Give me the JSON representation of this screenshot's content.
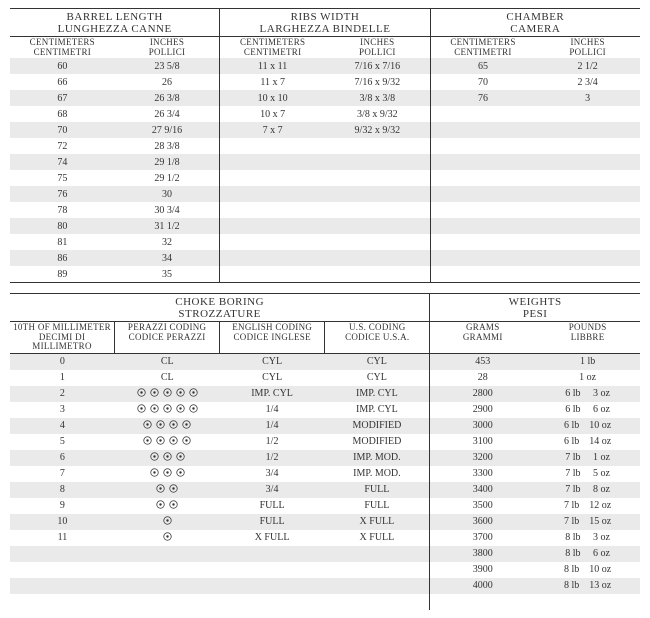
{
  "colors": {
    "stripe": "#eaeaea",
    "background": "#ffffff",
    "rule": "#333333",
    "text": "#333333"
  },
  "top": {
    "barrel": {
      "title_en": "BARREL LENGTH",
      "title_it": "LUNGHEZZA CANNE",
      "cols": {
        "cm_en": "CENTIMETERS",
        "cm_it": "CENTIMETRI",
        "in_en": "INCHES",
        "in_it": "POLLICI"
      },
      "rows": [
        {
          "cm": "60",
          "in": "23 5/8"
        },
        {
          "cm": "66",
          "in": "26"
        },
        {
          "cm": "67",
          "in": "26 3/8"
        },
        {
          "cm": "68",
          "in": "26 3/4"
        },
        {
          "cm": "70",
          "in": "27 9/16"
        },
        {
          "cm": "72",
          "in": "28 3/8"
        },
        {
          "cm": "74",
          "in": "29 1/8"
        },
        {
          "cm": "75",
          "in": "29 1/2"
        },
        {
          "cm": "76",
          "in": "30"
        },
        {
          "cm": "78",
          "in": "30 3/4"
        },
        {
          "cm": "80",
          "in": "31 1/2"
        },
        {
          "cm": "81",
          "in": "32"
        },
        {
          "cm": "86",
          "in": "34"
        },
        {
          "cm": "89",
          "in": "35"
        }
      ]
    },
    "ribs": {
      "title_en": "RIBS WIDTH",
      "title_it": "LARGHEZZA BINDELLE",
      "cols": {
        "cm_en": "CENTIMETERS",
        "cm_it": "CENTIMETRI",
        "in_en": "INCHES",
        "in_it": "POLLICI"
      },
      "rows": [
        {
          "cm": "11 x 11",
          "in": "7/16 x 7/16"
        },
        {
          "cm": "11 x 7",
          "in": "7/16 x 9/32"
        },
        {
          "cm": "10 x 10",
          "in": "3/8 x 3/8"
        },
        {
          "cm": "10 x 7",
          "in": "3/8 x 9/32"
        },
        {
          "cm": "7 x 7",
          "in": "9/32 x 9/32"
        },
        {
          "cm": "",
          "in": ""
        },
        {
          "cm": "",
          "in": ""
        },
        {
          "cm": "",
          "in": ""
        },
        {
          "cm": "",
          "in": ""
        },
        {
          "cm": "",
          "in": ""
        },
        {
          "cm": "",
          "in": ""
        },
        {
          "cm": "",
          "in": ""
        },
        {
          "cm": "",
          "in": ""
        },
        {
          "cm": "",
          "in": ""
        }
      ]
    },
    "chamber": {
      "title_en": "CHAMBER",
      "title_it": "CAMERA",
      "cols": {
        "cm_en": "CENTIMETERS",
        "cm_it": "CENTIMETRI",
        "in_en": "INCHES",
        "in_it": "POLLICI"
      },
      "rows": [
        {
          "cm": "65",
          "in": "2 1/2"
        },
        {
          "cm": "70",
          "in": "2 3/4"
        },
        {
          "cm": "76",
          "in": "3"
        },
        {
          "cm": "",
          "in": ""
        },
        {
          "cm": "",
          "in": ""
        },
        {
          "cm": "",
          "in": ""
        },
        {
          "cm": "",
          "in": ""
        },
        {
          "cm": "",
          "in": ""
        },
        {
          "cm": "",
          "in": ""
        },
        {
          "cm": "",
          "in": ""
        },
        {
          "cm": "",
          "in": ""
        },
        {
          "cm": "",
          "in": ""
        },
        {
          "cm": "",
          "in": ""
        },
        {
          "cm": "",
          "in": ""
        }
      ]
    }
  },
  "bottom": {
    "choke": {
      "title_en": "CHOKE BORING",
      "title_it": "STROZZATURE",
      "cols": {
        "mm_en": "10TH OF MILLIMETER",
        "mm_it": "DECIMI DI MILLIMETRO",
        "pz_en": "PERAZZI CODING",
        "pz_it": "CODICE PERAZZI",
        "eng_en": "ENGLISH CODING",
        "eng_it": "CODICE INGLESE",
        "us_en": "U.S. CODING",
        "us_it": "CODICE U.S.A."
      },
      "rows": [
        {
          "mm": "0",
          "pz_text": "CL",
          "pz_dots": 0,
          "eng": "CYL",
          "us": "CYL"
        },
        {
          "mm": "1",
          "pz_text": "CL",
          "pz_dots": 0,
          "eng": "CYL",
          "us": "CYL"
        },
        {
          "mm": "2",
          "pz_text": "",
          "pz_dots": 5,
          "eng": "IMP. CYL",
          "us": "IMP. CYL"
        },
        {
          "mm": "3",
          "pz_text": "",
          "pz_dots": 5,
          "eng": "1/4",
          "us": "IMP. CYL"
        },
        {
          "mm": "4",
          "pz_text": "",
          "pz_dots": 4,
          "eng": "1/4",
          "us": "MODIFIED"
        },
        {
          "mm": "5",
          "pz_text": "",
          "pz_dots": 4,
          "eng": "1/2",
          "us": "MODIFIED"
        },
        {
          "mm": "6",
          "pz_text": "",
          "pz_dots": 3,
          "eng": "1/2",
          "us": "IMP. MOD."
        },
        {
          "mm": "7",
          "pz_text": "",
          "pz_dots": 3,
          "eng": "3/4",
          "us": "IMP. MOD."
        },
        {
          "mm": "8",
          "pz_text": "",
          "pz_dots": 2,
          "eng": "3/4",
          "us": "FULL"
        },
        {
          "mm": "9",
          "pz_text": "",
          "pz_dots": 2,
          "eng": "FULL",
          "us": "FULL"
        },
        {
          "mm": "10",
          "pz_text": "",
          "pz_dots": 1,
          "eng": "FULL",
          "us": "X FULL"
        },
        {
          "mm": "11",
          "pz_text": "",
          "pz_dots": 1,
          "eng": "X FULL",
          "us": "X FULL"
        },
        {
          "mm": "",
          "pz_text": "",
          "pz_dots": 0,
          "eng": "",
          "us": ""
        },
        {
          "mm": "",
          "pz_text": "",
          "pz_dots": 0,
          "eng": "",
          "us": ""
        },
        {
          "mm": "",
          "pz_text": "",
          "pz_dots": 0,
          "eng": "",
          "us": ""
        },
        {
          "mm": "",
          "pz_text": "",
          "pz_dots": 0,
          "eng": "",
          "us": ""
        }
      ]
    },
    "weights": {
      "title_en": "WEIGHTS",
      "title_it": "PESI",
      "cols": {
        "g_en": "GRAMS",
        "g_it": "GRAMMI",
        "lb_en": "POUNDS",
        "lb_it": "LIBBRE"
      },
      "rows": [
        {
          "g": "453",
          "lb": "1 lb"
        },
        {
          "g": "28",
          "lb": "1 oz"
        },
        {
          "g": "2800",
          "lb": "6 lb  3 oz"
        },
        {
          "g": "2900",
          "lb": "6 lb  6 oz"
        },
        {
          "g": "3000",
          "lb": "6 lb 10 oz"
        },
        {
          "g": "3100",
          "lb": "6 lb 14 oz"
        },
        {
          "g": "3200",
          "lb": "7 lb  1 oz"
        },
        {
          "g": "3300",
          "lb": "7 lb  5 oz"
        },
        {
          "g": "3400",
          "lb": "7 lb  8 oz"
        },
        {
          "g": "3500",
          "lb": "7 lb 12 oz"
        },
        {
          "g": "3600",
          "lb": "7 lb 15 oz"
        },
        {
          "g": "3700",
          "lb": "8 lb  3 oz"
        },
        {
          "g": "3800",
          "lb": "8 lb  6 oz"
        },
        {
          "g": "3900",
          "lb": "8 lb 10 oz"
        },
        {
          "g": "4000",
          "lb": "8 lb 13 oz"
        },
        {
          "g": "",
          "lb": ""
        }
      ]
    }
  }
}
